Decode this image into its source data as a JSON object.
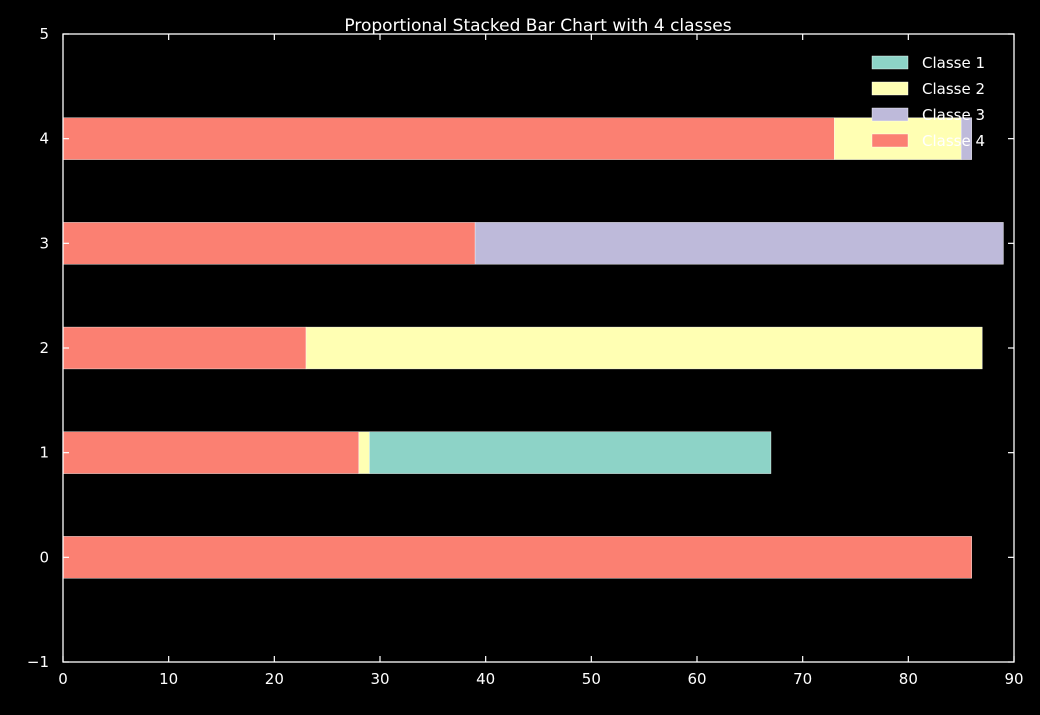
{
  "chart_data": {
    "type": "bar",
    "orientation": "horizontal",
    "stacked": true,
    "title": "Proportional Stacked Bar Chart with 4 classes",
    "xlabel": "",
    "ylabel": "",
    "xlim": [
      0,
      90
    ],
    "ylim": [
      -1,
      5
    ],
    "xticks": [
      0,
      10,
      20,
      30,
      40,
      50,
      60,
      70,
      80,
      90
    ],
    "yticks": [
      -1,
      0,
      1,
      2,
      3,
      4,
      5
    ],
    "ytick_labels": [
      "−1",
      "0",
      "1",
      "2",
      "3",
      "4",
      "5"
    ],
    "grid": false,
    "legend_position": "top-right",
    "categories": [
      0,
      1,
      2,
      3,
      4
    ],
    "series": [
      {
        "name": "Classe 1",
        "color": "#8dd3c7",
        "values": [
          0,
          38,
          0,
          0,
          0
        ]
      },
      {
        "name": "Classe 2",
        "color": "#ffffb3",
        "values": [
          0,
          1,
          64,
          0,
          12
        ]
      },
      {
        "name": "Classe 3",
        "color": "#bebada",
        "values": [
          0,
          0,
          0,
          50,
          1
        ]
      },
      {
        "name": "Classe 4",
        "color": "#fb8072",
        "values": [
          86,
          28,
          23,
          39,
          73
        ]
      }
    ],
    "stack_order": [
      3,
      1,
      0,
      2
    ]
  }
}
